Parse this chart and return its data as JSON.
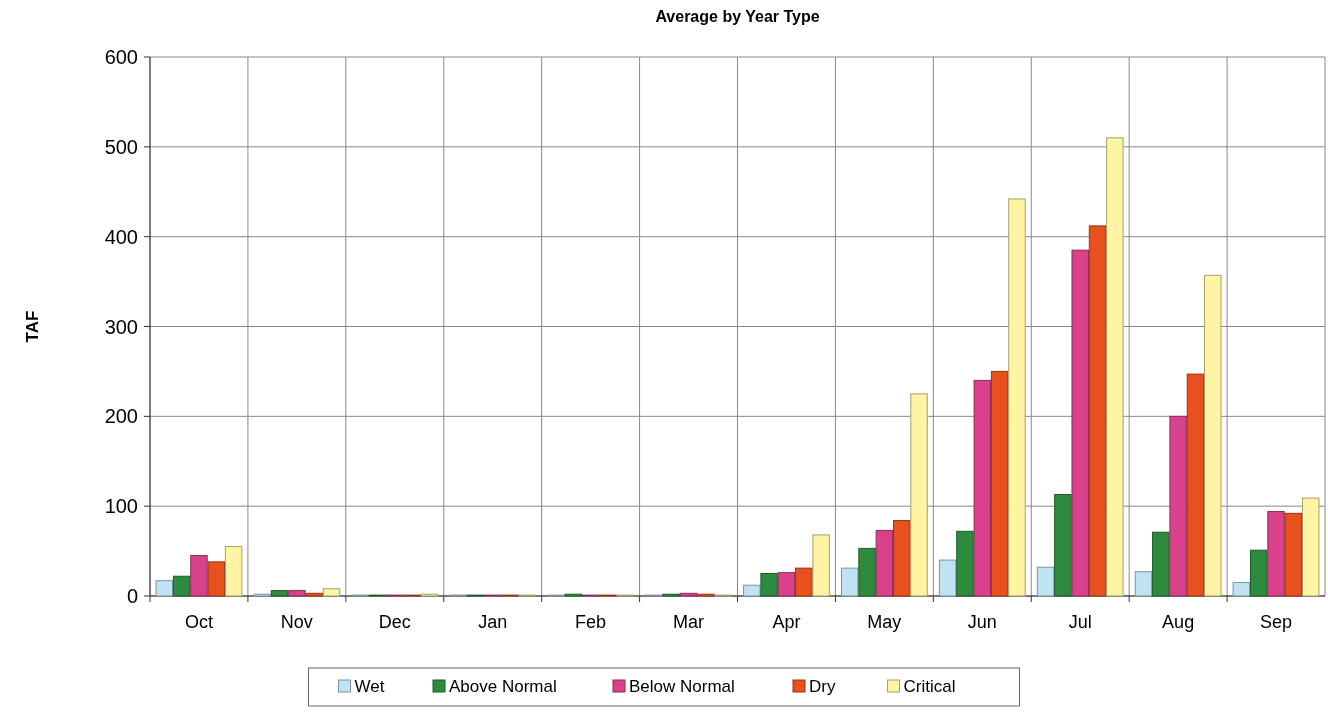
{
  "chart_data": {
    "type": "bar",
    "title": "Average by Year Type",
    "ylabel": "TAF",
    "categories": [
      "Oct",
      "Nov",
      "Dec",
      "Jan",
      "Feb",
      "Mar",
      "Apr",
      "May",
      "Jun",
      "Jul",
      "Aug",
      "Sep"
    ],
    "series": [
      {
        "name": "Wet",
        "color": "#bfe3f2",
        "values": [
          17,
          2,
          1,
          1,
          1,
          1,
          12,
          31,
          40,
          32,
          27,
          15
        ]
      },
      {
        "name": "Above Normal",
        "color": "#2e8b3e",
        "values": [
          22,
          6,
          1,
          1,
          2,
          2,
          25,
          53,
          72,
          113,
          71,
          51
        ]
      },
      {
        "name": "Below Normal",
        "color": "#d9428a",
        "values": [
          45,
          6,
          1,
          1,
          1,
          3,
          26,
          73,
          240,
          385,
          200,
          94
        ]
      },
      {
        "name": "Dry",
        "color": "#e8501e",
        "values": [
          38,
          3,
          1,
          1,
          1,
          2,
          31,
          84,
          250,
          412,
          247,
          92
        ]
      },
      {
        "name": "Critical",
        "color": "#fff4a3",
        "values": [
          55,
          8,
          2,
          1,
          1,
          1,
          68,
          225,
          442,
          510,
          357,
          109
        ]
      }
    ],
    "ylim": [
      0,
      600
    ],
    "yticks": [
      0,
      100,
      200,
      300,
      400,
      500,
      600
    ],
    "grid": true,
    "legend": "bottom"
  }
}
